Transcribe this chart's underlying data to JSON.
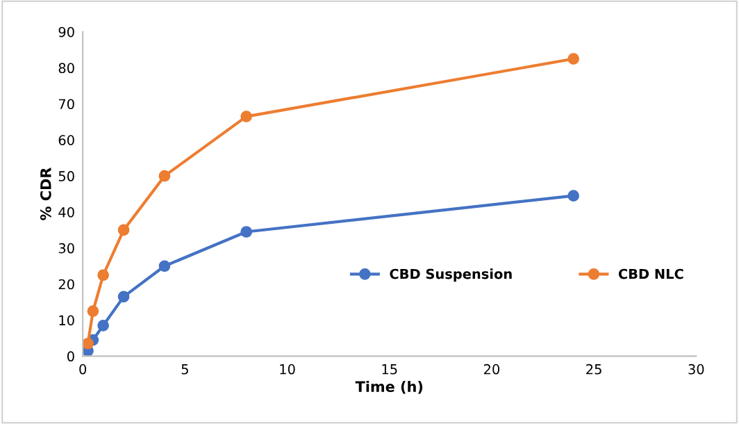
{
  "chart_data": {
    "type": "line",
    "xlabel": "Time (h)",
    "ylabel": "% CDR",
    "x": [
      0.25,
      0.5,
      1,
      2,
      4,
      8,
      24
    ],
    "series": [
      {
        "name": "CBD Suspension",
        "color": "#4472c4",
        "values": [
          1.5,
          4.5,
          8.5,
          16.5,
          25,
          34.5,
          44.5
        ]
      },
      {
        "name": "CBD NLC",
        "color": "#ed7d31",
        "values": [
          3.5,
          12.5,
          22.5,
          35,
          50,
          66.5,
          82.5
        ]
      }
    ],
    "xlim": [
      0,
      30
    ],
    "xticks": [
      0,
      5,
      10,
      15,
      20,
      25,
      30
    ],
    "ylim": [
      0,
      90
    ],
    "yticks": [
      0,
      10,
      20,
      30,
      40,
      50,
      60,
      70,
      80,
      90
    ],
    "grid": false,
    "legend": "right",
    "marker": "circle",
    "line_style": "solid"
  }
}
